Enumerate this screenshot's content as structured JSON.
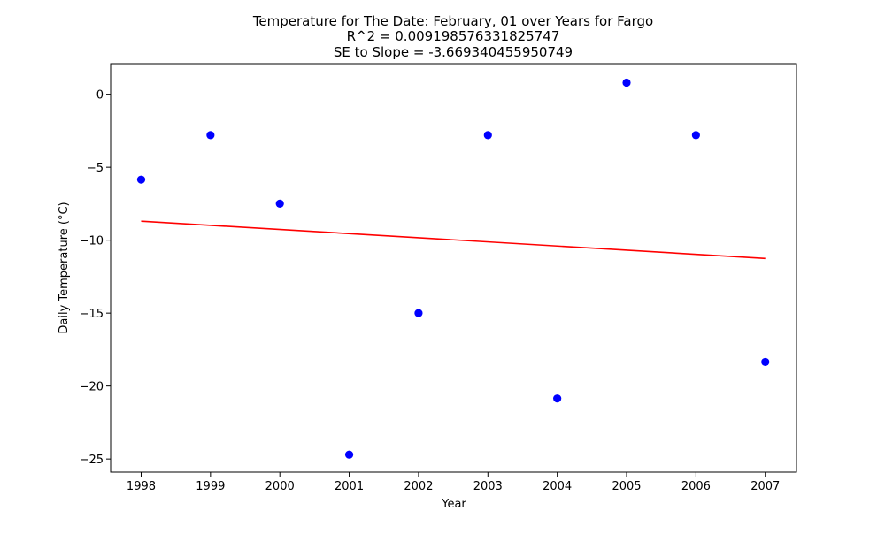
{
  "chart_data": {
    "type": "scatter",
    "title_lines": [
      "Temperature for The Date: February, 01 over Years for Fargo",
      "R^2 = 0.009198576331825747",
      "SE to Slope = -3.669340455950749"
    ],
    "xlabel": "Year",
    "ylabel": "Daily Temperature (°C)",
    "x_ticks": [
      1998,
      1999,
      2000,
      2001,
      2002,
      2003,
      2004,
      2005,
      2006,
      2007
    ],
    "y_ticks": [
      0,
      -5,
      -10,
      -15,
      -20,
      -25
    ],
    "y_tick_labels": [
      "0",
      "−5",
      "−10",
      "−15",
      "−20",
      "−25"
    ],
    "xlim": [
      1997.56,
      2007.45
    ],
    "ylim": [
      -25.9,
      2.1
    ],
    "grid": false,
    "series": [
      {
        "marker_color": "#0000ff",
        "x": [
          1998,
          1999,
          2000,
          2001,
          2002,
          2003,
          2004,
          2005,
          2006,
          2007
        ],
        "y": [
          -5.85,
          -2.8,
          -7.5,
          -24.7,
          -15.0,
          -2.8,
          -20.85,
          0.8,
          -2.8,
          -18.35
        ]
      }
    ],
    "trend_line": {
      "color": "#ff0000",
      "x": [
        1998,
        2007
      ],
      "y": [
        -8.7,
        -11.25
      ]
    }
  }
}
